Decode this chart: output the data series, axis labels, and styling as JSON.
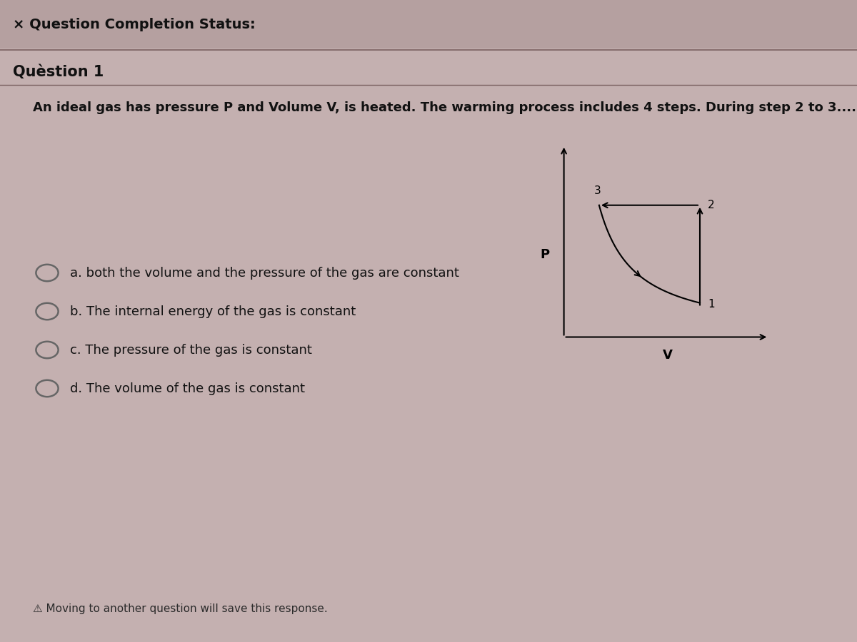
{
  "background_color": "#c4b0b0",
  "header_text": "× Question Completion Status:",
  "question_label": "Quèstion 1",
  "question_text": "An ideal gas has pressure P and Volume V, is heated. The warming process includes 4 steps. During step 2 to 3.....................",
  "options": [
    "a. both the volume and the pressure of the gas are constant",
    "b. The internal energy of the gas is constant",
    "c. The pressure of the gas is constant",
    "d. The volume of the gas is constant"
  ],
  "footer_text": "⚠ Moving to another question will save this response.",
  "header_bg": "#b8a4a4",
  "header_font_size": 13,
  "question_font_size": 13,
  "option_font_size": 13
}
